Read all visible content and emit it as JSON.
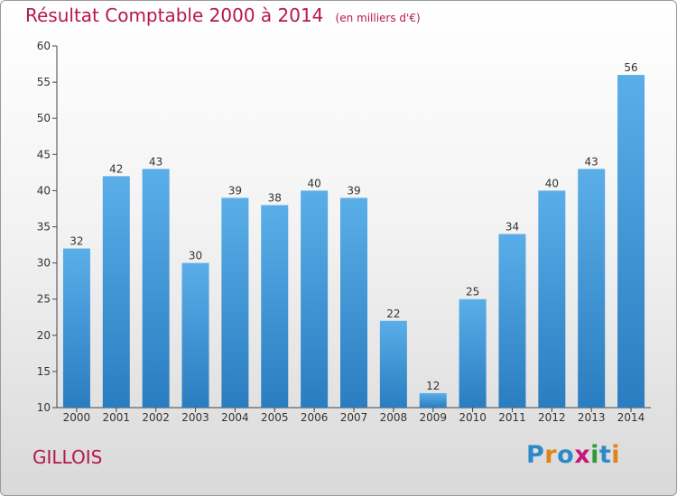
{
  "page": {
    "title": "Résultat Comptable 2000 à 2014",
    "subtitle": "(en milliers d'€)",
    "commune": "GILLOIS",
    "logo_text": "Proxiti",
    "logo_letters": [
      {
        "char": "P",
        "color": "#2e89c8"
      },
      {
        "char": "r",
        "color": "#e0831c"
      },
      {
        "char": "o",
        "color": "#2e89c8"
      },
      {
        "char": "x",
        "color": "#c5187a"
      },
      {
        "char": "i",
        "color": "#2e9a3a"
      },
      {
        "char": "t",
        "color": "#2e89c8"
      },
      {
        "char": "i",
        "color": "#e0831c"
      }
    ]
  },
  "chart_data": {
    "type": "bar",
    "title": "Résultat Comptable 2000 à 2014",
    "subtitle": "(en milliers d'€)",
    "xlabel": "",
    "ylabel": "",
    "categories": [
      "2000",
      "2001",
      "2002",
      "2003",
      "2004",
      "2005",
      "2006",
      "2007",
      "2008",
      "2009",
      "2010",
      "2011",
      "2012",
      "2013",
      "2014"
    ],
    "values": [
      32,
      42,
      43,
      30,
      39,
      38,
      40,
      39,
      22,
      12,
      25,
      34,
      40,
      43,
      56
    ],
    "ylim": [
      10,
      60
    ],
    "yticks": [
      10,
      15,
      20,
      25,
      30,
      35,
      40,
      45,
      50,
      55,
      60
    ],
    "grid": false,
    "data_labels": true,
    "colors": {
      "bar_top": "#5aaee8",
      "bar_bottom": "#2a7dc0",
      "axis": "#444444",
      "title": "#b5174e"
    }
  }
}
